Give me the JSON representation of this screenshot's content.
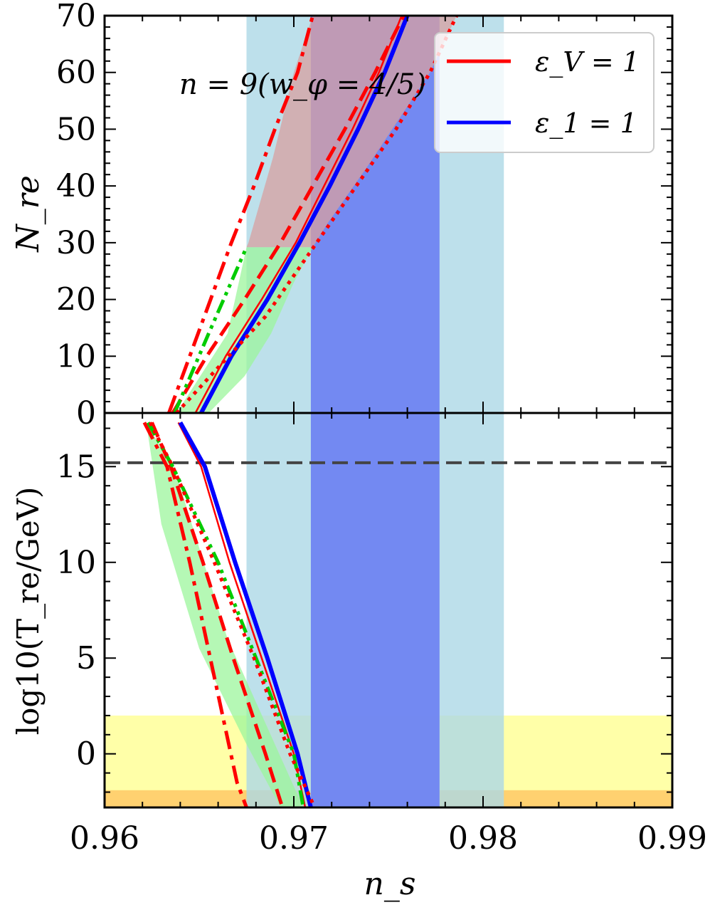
{
  "chart_data": [
    {
      "panel": "top",
      "type": "line",
      "annotation": "n = 9(w_φ = 4/5)",
      "xlabel": "",
      "ylabel": "N_re",
      "xlim": [
        0.96,
        0.99
      ],
      "ylim": [
        0,
        70
      ],
      "yticks": [
        "0",
        "10",
        "20",
        "30",
        "40",
        "50",
        "60",
        "70"
      ],
      "bands": [
        {
          "x": [
            0.9675,
            0.9811
          ],
          "color": "#add8e6"
        },
        {
          "x": [
            0.9709,
            0.9777
          ],
          "color": "#6f84f2"
        }
      ],
      "regions": [
        {
          "name": "red-region",
          "color": "#d8a0a0",
          "poly": [
            [
              0.9675,
              29.2
            ],
            [
              0.971,
              29.2
            ],
            [
              0.9718,
              33.5
            ],
            [
              0.9738,
              43
            ],
            [
              0.9757,
              52.5
            ],
            [
              0.9772,
              60
            ],
            [
              0.9786,
              70
            ],
            [
              0.971,
              70
            ],
            [
              0.97,
              60
            ],
            [
              0.9689,
              45
            ],
            [
              0.9676,
              30
            ]
          ]
        },
        {
          "name": "green-region",
          "color": "#9cf59c",
          "poly": [
            [
              0.9638,
              0
            ],
            [
              0.9665,
              14
            ],
            [
              0.9675,
              29.2
            ],
            [
              0.971,
              29.2
            ],
            [
              0.97,
              23
            ],
            [
              0.9688,
              14
            ],
            [
              0.9674,
              6.5
            ],
            [
              0.9655,
              0
            ]
          ]
        }
      ],
      "series": [
        {
          "style": "solid",
          "color": "#ff0000",
          "x": [
            0.9648,
            0.9664,
            0.9683,
            0.9701,
            0.9716,
            0.9731,
            0.9745,
            0.9757
          ],
          "y": [
            0,
            10,
            20,
            30,
            40,
            50,
            60,
            70
          ]
        },
        {
          "style": "solid",
          "color": "#0000ff",
          "x": [
            0.9651,
            0.9667,
            0.9686,
            0.9703,
            0.9719,
            0.9734,
            0.9748,
            0.976
          ],
          "y": [
            0,
            10,
            20,
            30,
            40,
            50,
            60,
            70
          ]
        },
        {
          "style": "dashdot",
          "color": "#ff0000",
          "x": [
            0.9634,
            0.9645,
            0.9656,
            0.9667,
            0.9679,
            0.969,
            0.9702,
            0.971
          ],
          "y": [
            0,
            10,
            20,
            30,
            40,
            50,
            60,
            70
          ]
        },
        {
          "style": "dashed",
          "color": "#ff0000",
          "x": [
            0.9636,
            0.9654,
            0.9674,
            0.9693,
            0.971,
            0.9727,
            0.9743,
            0.9758
          ],
          "y": [
            0,
            10,
            20,
            30,
            40,
            50,
            60,
            70
          ]
        },
        {
          "style": "dashdotdot",
          "color": "#00cc00",
          "x": [
            0.9637,
            0.9655,
            0.9675
          ],
          "y": [
            0,
            14,
            29.2
          ]
        },
        {
          "style": "dotted",
          "color": "#ff0000",
          "x": [
            0.9638,
            0.966,
            0.9685,
            0.971,
            0.9733,
            0.9754,
            0.9772,
            0.9786
          ],
          "y": [
            0,
            8,
            17,
            29,
            40,
            50,
            60,
            70
          ]
        }
      ],
      "legend": {
        "placement": "top-right",
        "entries": [
          {
            "label": "ε_V = 1",
            "color": "#ff0000"
          },
          {
            "label": "ε_1 = 1",
            "color": "#0000ff"
          }
        ]
      }
    },
    {
      "panel": "bottom",
      "type": "line",
      "xlabel": "n_s",
      "ylabel": "log10(T_re/GeV)",
      "xlim": [
        0.96,
        0.99
      ],
      "ylim": [
        -2.8,
        17.8
      ],
      "xticks": [
        "0.96",
        "0.97",
        "0.98",
        "0.99"
      ],
      "yticks": [
        "0",
        "5",
        "10",
        "15"
      ],
      "hline": {
        "y": 15.2,
        "style": "dashed",
        "color": "#444444"
      },
      "bands": [
        {
          "x": [
            0.9675,
            0.9811
          ],
          "color": "#add8e6"
        },
        {
          "x": [
            0.9709,
            0.9777
          ],
          "color": "#6f84f2"
        }
      ],
      "hbands": [
        {
          "y": [
            -2.8,
            2.0
          ],
          "color": "#ffff99"
        },
        {
          "y": [
            -2.8,
            -1.9
          ],
          "color": "#ffc966"
        }
      ],
      "regions": [
        {
          "name": "green-region",
          "color": "#9cf59c",
          "poly": [
            [
              0.9621,
              17.3
            ],
            [
              0.9636,
              15.2
            ],
            [
              0.9665,
              6.0
            ],
            [
              0.9705,
              -2.8
            ],
            [
              0.9693,
              -2.8
            ],
            [
              0.9675,
              0.5
            ],
            [
              0.965,
              5.5
            ],
            [
              0.963,
              12
            ],
            [
              0.9622,
              17.3
            ]
          ]
        }
      ],
      "series": [
        {
          "style": "solid",
          "color": "#ff0000",
          "x": [
            0.9639,
            0.9651,
            0.9666,
            0.9683,
            0.97,
            0.9706
          ],
          "y": [
            17.3,
            15.0,
            10.0,
            5.0,
            0.0,
            -2.8
          ]
        },
        {
          "style": "solid",
          "color": "#0000ff",
          "x": [
            0.964,
            0.9653,
            0.9669,
            0.9686,
            0.9702,
            0.9709
          ],
          "y": [
            17.3,
            15.0,
            10.0,
            5.0,
            0.0,
            -2.8
          ]
        },
        {
          "style": "dashdot",
          "color": "#ff0000",
          "x": [
            0.9621,
            0.9633,
            0.9645,
            0.9658,
            0.967,
            0.9675
          ],
          "y": [
            17.3,
            15.0,
            10.0,
            4.0,
            -1.5,
            -2.8
          ]
        },
        {
          "style": "dashed",
          "color": "#ff0000",
          "x": [
            0.9625,
            0.9635,
            0.9652,
            0.9668,
            0.9685,
            0.9694
          ],
          "y": [
            17.3,
            15.0,
            10.0,
            5.0,
            0.0,
            -2.8
          ]
        },
        {
          "style": "dashdotdot",
          "color": "#00cc00",
          "x": [
            0.9623,
            0.9636,
            0.966,
            0.968,
            0.97,
            0.9705
          ],
          "y": [
            17.3,
            15.0,
            10.0,
            5.0,
            0.0,
            -2.8
          ]
        },
        {
          "style": "dotted",
          "color": "#ff0000",
          "x": [
            0.9624,
            0.9636,
            0.9658,
            0.9679,
            0.9698,
            0.9711
          ],
          "y": [
            17.3,
            15.0,
            10.0,
            5.0,
            0.0,
            -2.8
          ]
        }
      ]
    }
  ]
}
